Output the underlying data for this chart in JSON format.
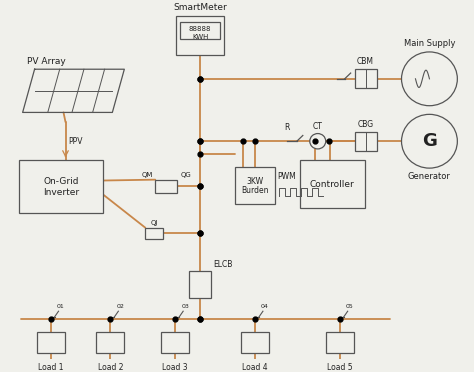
{
  "bg_color": "#f0f0eb",
  "wire_color": "#c8874a",
  "comp_color": "#555555",
  "text_color": "#222222",
  "figsize": [
    4.74,
    3.72
  ],
  "dpi": 100,
  "components": {
    "pv_label": "PV Array",
    "inverter_label": "On-Grid\nInverter",
    "sm_label": "SmartMeter",
    "sm_display": "88888\nKWH",
    "burden_label": "3KW\nBurden",
    "pwm_label": "PWM",
    "ctrl_label": "Controller",
    "cbm_label": "CBM",
    "cbg_label": "CBG",
    "ms_label": "Main Supply",
    "gen_label": "Generator",
    "elcb_label": "ELCB",
    "qm_label": "QM",
    "qg_label": "QG",
    "qj_label": "QJ",
    "ppv_label": "PPV",
    "r_label": "R",
    "ct_label": "CT"
  },
  "loads": [
    "Load 1",
    "Load 2",
    "Load 3",
    "Load 4",
    "Load 5"
  ],
  "load_ids": [
    "01",
    "02",
    "03",
    "04",
    "05"
  ]
}
